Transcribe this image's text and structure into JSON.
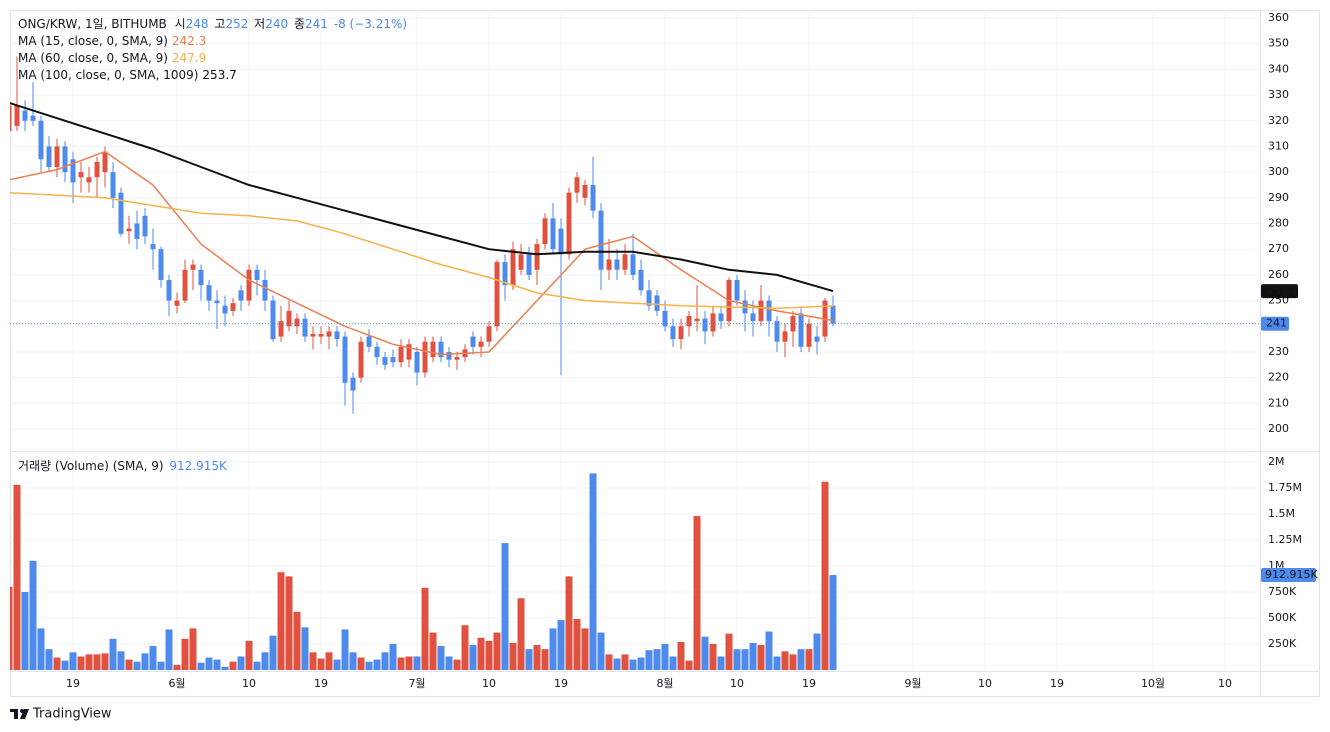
{
  "chart_data": [
    {
      "type": "candlestick",
      "title": "ONG/KRW, 1일, BITHUMB",
      "ohlc_labels": [
        "시",
        "고",
        "저",
        "종"
      ],
      "change_label": "-8 (−3.21%)",
      "up_color": "#e0513f",
      "down_color": "#4e89ec",
      "grid": true,
      "xlim": [
        0.125,
        156.375
      ],
      "xticks": [
        {
          "value": 8,
          "label": "19"
        },
        {
          "value": 21,
          "label": "6월"
        },
        {
          "value": 30,
          "label": "10"
        },
        {
          "value": 39,
          "label": "19"
        },
        {
          "value": 51,
          "label": "7월"
        },
        {
          "value": 60,
          "label": "10"
        },
        {
          "value": 69,
          "label": "19"
        },
        {
          "value": 82,
          "label": "8월"
        },
        {
          "value": 91,
          "label": "10"
        },
        {
          "value": 100,
          "label": "19"
        },
        {
          "value": 113,
          "label": "9월"
        },
        {
          "value": 122,
          "label": "10"
        },
        {
          "value": 131,
          "label": "19"
        },
        {
          "value": 143,
          "label": "10월"
        },
        {
          "value": 152,
          "label": "10"
        }
      ],
      "ylim": [
        191.84,
        363.11
      ],
      "yticks": [
        200,
        210,
        220,
        230,
        240,
        250,
        260,
        270,
        280,
        290,
        300,
        310,
        320,
        330,
        340,
        350,
        360
      ],
      "open": [
        316,
        318,
        324,
        322,
        320,
        310,
        302,
        310,
        305,
        298,
        296,
        298,
        300,
        300,
        292,
        277,
        280,
        283,
        272,
        270,
        258,
        248,
        250,
        262,
        262,
        256,
        250,
        248,
        246,
        254,
        250,
        262,
        258,
        250,
        236,
        240,
        240,
        243,
        236,
        236,
        236,
        238,
        236,
        220,
        220,
        236,
        232,
        228,
        228,
        226,
        227,
        230,
        222,
        228,
        234,
        230,
        227,
        228,
        236,
        232,
        234,
        240,
        265,
        256,
        262,
        268,
        262,
        272,
        282,
        278,
        268,
        292,
        290,
        295,
        285,
        262,
        266,
        262,
        268,
        262,
        254,
        252,
        246,
        240,
        235,
        240,
        242,
        243,
        238,
        245,
        242,
        258,
        250,
        245,
        242,
        250,
        242,
        234,
        238,
        245,
        232,
        236,
        236,
        248
      ],
      "high": [
        328,
        345,
        328,
        335,
        322,
        314,
        313,
        312,
        308,
        304,
        302,
        306,
        310,
        304,
        294,
        283,
        285,
        286,
        278,
        271,
        260,
        253,
        266,
        266,
        264,
        258,
        254,
        252,
        251,
        256,
        264,
        264,
        262,
        252,
        248,
        250,
        245,
        245,
        240,
        240,
        240,
        240,
        238,
        222,
        236,
        239,
        234,
        230,
        231,
        235,
        235,
        232,
        236,
        236,
        236,
        232,
        230,
        233,
        238,
        236,
        242,
        266,
        268,
        273,
        272,
        271,
        274,
        284,
        288,
        282,
        294,
        300,
        297,
        306,
        288,
        274,
        270,
        272,
        276,
        266,
        258,
        254,
        250,
        243,
        243,
        246,
        256,
        246,
        248,
        248,
        259,
        260,
        254,
        250,
        256,
        252,
        244,
        241,
        246,
        247,
        243,
        240,
        251,
        252
      ],
      "low": [
        312,
        316,
        316,
        318,
        300,
        300,
        298,
        296,
        288,
        292,
        292,
        290,
        294,
        286,
        275,
        272,
        270,
        272,
        262,
        255,
        244,
        245,
        249,
        254,
        250,
        246,
        239,
        240,
        244,
        246,
        248,
        252,
        246,
        234,
        234,
        238,
        237,
        234,
        231,
        233,
        231,
        232,
        209,
        206,
        218,
        230,
        225,
        223,
        224,
        224,
        224,
        217,
        220,
        226,
        226,
        224,
        223,
        226,
        229,
        228,
        232,
        238,
        250,
        254,
        260,
        258,
        256,
        270,
        268,
        221,
        266,
        288,
        287,
        282,
        254,
        258,
        258,
        260,
        258,
        252,
        246,
        244,
        238,
        232,
        231,
        236,
        238,
        233,
        236,
        239,
        240,
        248,
        238,
        236,
        240,
        236,
        230,
        228,
        232,
        230,
        230,
        229,
        234,
        240
      ],
      "close": [
        326,
        326,
        320,
        320,
        305,
        302,
        310,
        300,
        296,
        300,
        298,
        304,
        308,
        290,
        276,
        278,
        274,
        275,
        270,
        258,
        250,
        250,
        262,
        264,
        256,
        250,
        249,
        245,
        249,
        250,
        262,
        258,
        250,
        235,
        242,
        246,
        243,
        236,
        237,
        237,
        238,
        235,
        218,
        215,
        234,
        232,
        228,
        225,
        226,
        232,
        233,
        222,
        234,
        234,
        228,
        227,
        228,
        231,
        232,
        234,
        240,
        265,
        256,
        270,
        268,
        260,
        272,
        282,
        270,
        268,
        292,
        298,
        295,
        285,
        262,
        266,
        262,
        268,
        260,
        254,
        248,
        246,
        240,
        235,
        240,
        244,
        243,
        238,
        245,
        242,
        258,
        250,
        245,
        242,
        250,
        242,
        234,
        238,
        244,
        232,
        241,
        234,
        250,
        241
      ],
      "series": [
        {
          "name": "MA (15, close, 0, SMA, 9)",
          "color": "#ee7d4f",
          "x": [
            0,
            6,
            12,
            18,
            24,
            30,
            36,
            42,
            48,
            54,
            60,
            66,
            72,
            78,
            84,
            90,
            96,
            103
          ],
          "values": [
            297,
            301,
            308,
            295,
            272,
            258,
            249,
            240,
            233,
            229,
            230,
            250,
            270,
            275,
            262,
            250,
            246,
            242.3
          ]
        },
        {
          "name": "MA (60, close, 0, SMA, 9)",
          "color": "#f7b24a",
          "x": [
            0,
            6,
            12,
            18,
            24,
            30,
            36,
            42,
            48,
            54,
            60,
            66,
            72,
            78,
            84,
            90,
            96,
            103
          ],
          "values": [
            292,
            291,
            290,
            287,
            284,
            283,
            281,
            276,
            270,
            264,
            259,
            253,
            250,
            249,
            248,
            247.5,
            247,
            247.9
          ]
        },
        {
          "name": "MA (100, close, 0, SMA, 1009)",
          "color": "#111111",
          "x": [
            0,
            6,
            12,
            18,
            24,
            30,
            36,
            42,
            48,
            54,
            60,
            66,
            72,
            78,
            84,
            90,
            96,
            103
          ],
          "values": [
            327,
            321,
            315,
            309,
            302,
            295,
            290,
            285,
            280,
            275,
            270,
            268,
            269,
            269,
            266,
            262,
            260,
            253.7
          ]
        }
      ]
    },
    {
      "type": "bar",
      "title": "거래량 (Volume) (SMA, 9)",
      "ylim": [
        0,
        2096000
      ],
      "yticks": [
        {
          "value": 250000,
          "label": "250K"
        },
        {
          "value": 500000,
          "label": "500K"
        },
        {
          "value": 750000,
          "label": "750K"
        },
        {
          "value": 1000000,
          "label": "1M"
        },
        {
          "value": 1250000,
          "label": "1.25M"
        },
        {
          "value": 1500000,
          "label": "1.5M"
        },
        {
          "value": 1750000,
          "label": "1.75M"
        },
        {
          "value": 2000000,
          "label": "2M"
        }
      ],
      "values": [
        800000,
        1780000,
        750000,
        1050000,
        400000,
        200000,
        120000,
        90000,
        170000,
        130000,
        150000,
        150000,
        160000,
        300000,
        180000,
        100000,
        80000,
        160000,
        230000,
        80000,
        390000,
        50000,
        300000,
        400000,
        70000,
        120000,
        100000,
        30000,
        80000,
        130000,
        280000,
        80000,
        170000,
        330000,
        940000,
        900000,
        560000,
        410000,
        170000,
        110000,
        170000,
        100000,
        390000,
        170000,
        120000,
        80000,
        100000,
        170000,
        250000,
        120000,
        130000,
        130000,
        790000,
        360000,
        230000,
        130000,
        100000,
        430000,
        240000,
        310000,
        280000,
        360000,
        1220000,
        260000,
        690000,
        200000,
        240000,
        200000,
        400000,
        480000,
        900000,
        490000,
        400000,
        1890000,
        360000,
        150000,
        110000,
        150000,
        100000,
        120000,
        190000,
        200000,
        250000,
        130000,
        270000,
        90000,
        1480000,
        320000,
        250000,
        130000,
        350000,
        200000,
        200000,
        260000,
        240000,
        370000,
        130000,
        180000,
        150000,
        200000,
        200000,
        350000,
        1810000,
        912915
      ],
      "value_labels": [
        null,
        null,
        null,
        null,
        null,
        null,
        null,
        null,
        null,
        null,
        null,
        null,
        null,
        null,
        null,
        null,
        null,
        null,
        null,
        null,
        null,
        null,
        null,
        null,
        null,
        null,
        null,
        null,
        null,
        null,
        null,
        null,
        null,
        null,
        null,
        null,
        null,
        null,
        null,
        null,
        null,
        null,
        null,
        null,
        null,
        null,
        null,
        null,
        null,
        null,
        null,
        null,
        null,
        null,
        null,
        null,
        null,
        null,
        null,
        null,
        null,
        null,
        null,
        null,
        null,
        null,
        null,
        null,
        null,
        null,
        null,
        null,
        null,
        null,
        null,
        null,
        null,
        null,
        null,
        null,
        null,
        null,
        null,
        null,
        null,
        null,
        null,
        null,
        null,
        null,
        null,
        null,
        null,
        null,
        null,
        null,
        null,
        null,
        null,
        null,
        null,
        null,
        null,
        "912.915K"
      ]
    }
  ],
  "branding": "TradingView"
}
